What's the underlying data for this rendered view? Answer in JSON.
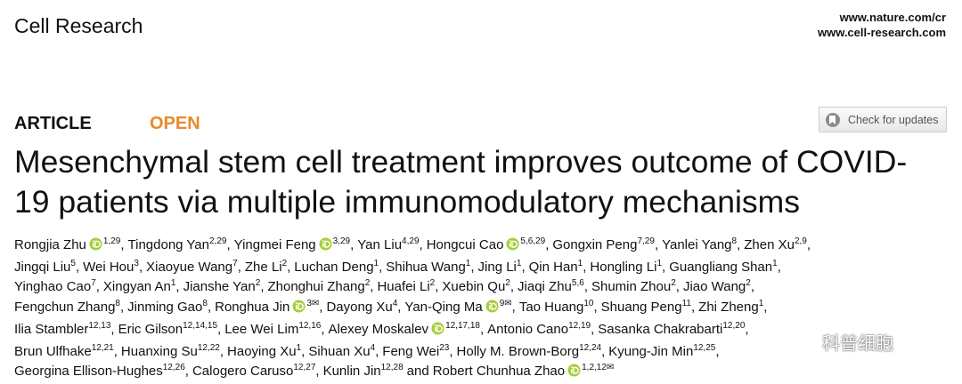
{
  "header": {
    "journal": "Cell Research",
    "urls": [
      "www.nature.com/cr",
      "www.cell-research.com"
    ]
  },
  "article_type": "ARTICLE",
  "access": "OPEN",
  "check_updates": "Check for updates",
  "title": [
    "Mesenchymal stem cell treatment improves outcome of COVID-",
    "19 patients via multiple immunomodulatory mechanisms"
  ],
  "author_lines": [
    [
      {
        "name": "Rongjia Zhu",
        "orcid": true,
        "sup": "1,29",
        "after": ","
      },
      {
        "name": "Tingdong Yan",
        "sup": "2,29",
        "after": ","
      },
      {
        "name": "Yingmei Feng",
        "orcid": true,
        "sup": "3,29",
        "after": ","
      },
      {
        "name": "Yan Liu",
        "sup": "4,29",
        "after": ","
      },
      {
        "name": "Hongcui Cao",
        "orcid": true,
        "sup": "5,6,29",
        "after": ","
      },
      {
        "name": "Gongxin Peng",
        "sup": "7,29",
        "after": ","
      },
      {
        "name": "Yanlei Yang",
        "sup": "8",
        "after": ","
      },
      {
        "name": "Zhen Xu",
        "sup": "2,9",
        "after": ","
      }
    ],
    [
      {
        "name": "Jingqi Liu",
        "sup": "5",
        "after": ","
      },
      {
        "name": "Wei Hou",
        "sup": "3",
        "after": ","
      },
      {
        "name": "Xiaoyue Wang",
        "sup": "7",
        "after": ","
      },
      {
        "name": "Zhe Li",
        "sup": "2",
        "after": ","
      },
      {
        "name": "Luchan Deng",
        "sup": "1",
        "after": ","
      },
      {
        "name": "Shihua Wang",
        "sup": "1",
        "after": ","
      },
      {
        "name": "Jing Li",
        "sup": "1",
        "after": ","
      },
      {
        "name": "Qin Han",
        "sup": "1",
        "after": ","
      },
      {
        "name": "Hongling Li",
        "sup": "1",
        "after": ","
      },
      {
        "name": "Guangliang Shan",
        "sup": "1",
        "after": ","
      }
    ],
    [
      {
        "name": "Yinghao Cao",
        "sup": "7",
        "after": ","
      },
      {
        "name": "Xingyan An",
        "sup": "1",
        "after": ","
      },
      {
        "name": "Jianshe Yan",
        "sup": "2",
        "after": ","
      },
      {
        "name": "Zhonghui Zhang",
        "sup": "2",
        "after": ","
      },
      {
        "name": "Huafei Li",
        "sup": "2",
        "after": ","
      },
      {
        "name": "Xuebin Qu",
        "sup": "2",
        "after": ","
      },
      {
        "name": "Jiaqi Zhu",
        "sup": "5,6",
        "after": ","
      },
      {
        "name": "Shumin Zhou",
        "sup": "2",
        "after": ","
      },
      {
        "name": "Jiao Wang",
        "sup": "2",
        "after": ","
      }
    ],
    [
      {
        "name": "Fengchun Zhang",
        "sup": "8",
        "after": ","
      },
      {
        "name": "Jinming Gao",
        "sup": "8",
        "after": ","
      },
      {
        "name": "Ronghua Jin",
        "orcid": true,
        "sup": "3✉",
        "after": ","
      },
      {
        "name": "Dayong Xu",
        "sup": "4",
        "after": ","
      },
      {
        "name": "Yan-Qing Ma",
        "orcid": true,
        "sup": "9✉",
        "after": ","
      },
      {
        "name": "Tao Huang",
        "sup": "10",
        "after": ","
      },
      {
        "name": "Shuang Peng",
        "sup": "11",
        "after": ","
      },
      {
        "name": "Zhi Zheng",
        "sup": "1",
        "after": ","
      }
    ],
    [
      {
        "name": "Ilia Stambler",
        "sup": "12,13",
        "after": ","
      },
      {
        "name": "Eric Gilson",
        "sup": "12,14,15",
        "after": ","
      },
      {
        "name": "Lee Wei Lim",
        "sup": "12,16",
        "after": ","
      },
      {
        "name": "Alexey Moskalev",
        "orcid": true,
        "sup": "12,17,18",
        "after": ","
      },
      {
        "name": "Antonio Cano",
        "sup": "12,19",
        "after": ","
      },
      {
        "name": "Sasanka Chakrabarti",
        "sup": "12,20",
        "after": ","
      }
    ],
    [
      {
        "name": "Brun Ulfhake",
        "sup": "12,21",
        "after": ","
      },
      {
        "name": "Huanxing Su",
        "sup": "12,22",
        "after": ","
      },
      {
        "name": "Haoying Xu",
        "sup": "1",
        "after": ","
      },
      {
        "name": "Sihuan Xu",
        "sup": "4",
        "after": ","
      },
      {
        "name": "Feng Wei",
        "sup": "23",
        "after": ","
      },
      {
        "name": "Holly M. Brown-Borg",
        "sup": "12,24",
        "after": ","
      },
      {
        "name": "Kyung-Jin Min",
        "sup": "12,25",
        "after": ","
      }
    ],
    [
      {
        "name": "Georgina Ellison-Hughes",
        "sup": "12,26",
        "after": ","
      },
      {
        "name": "Calogero Caruso",
        "sup": "12,27",
        "after": ","
      },
      {
        "name": "Kunlin Jin",
        "sup": "12,28",
        "after": "and"
      },
      {
        "name": "Robert Chunhua Zhao",
        "orcid": true,
        "sup": "1,2,12✉"
      }
    ]
  ],
  "watermark": "科普细胞"
}
